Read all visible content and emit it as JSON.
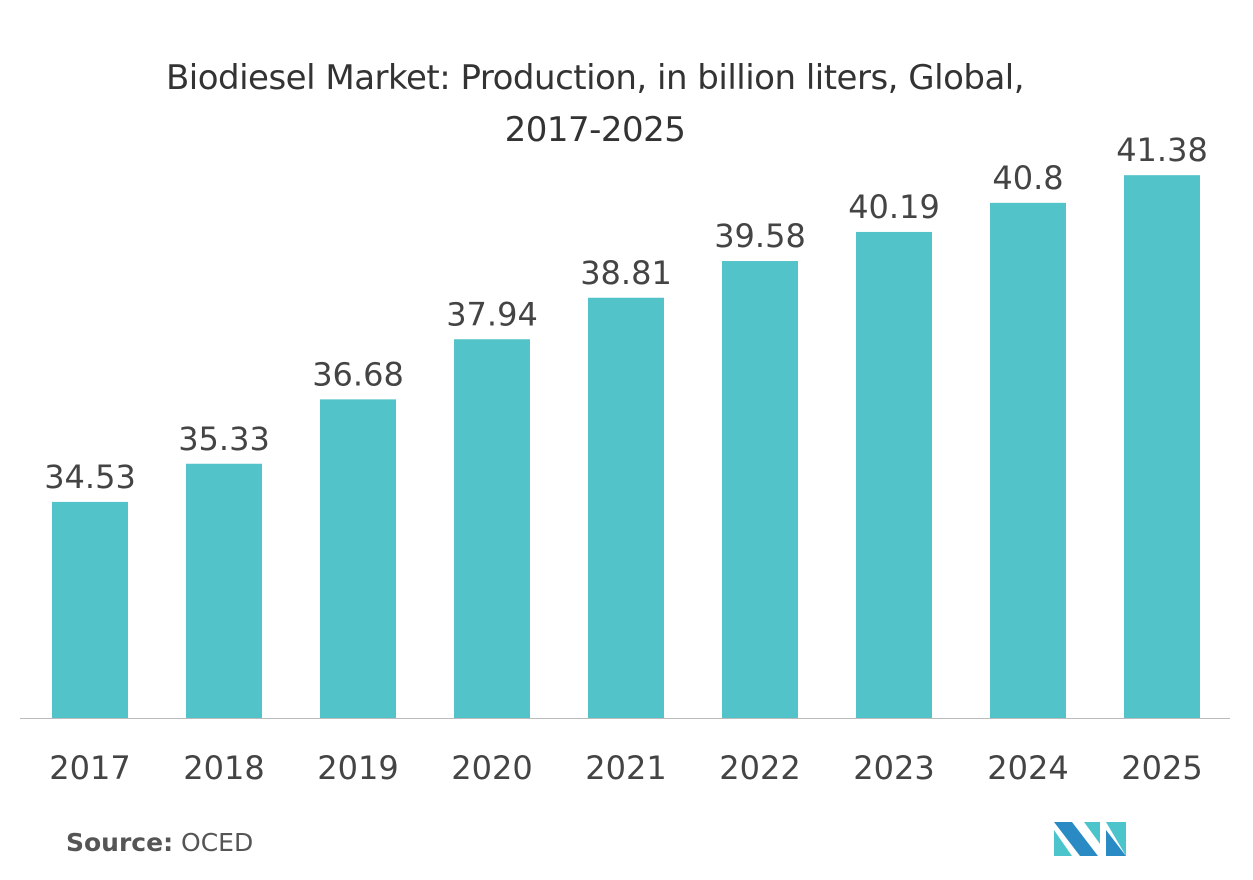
{
  "chart_data": {
    "type": "bar",
    "title_line1": "Biodiesel Market: Production, in billion liters, Global,",
    "title_line2": "2017-2025",
    "categories": [
      "2017",
      "2018",
      "2019",
      "2020",
      "2021",
      "2022",
      "2023",
      "2024",
      "2025"
    ],
    "values": [
      34.53,
      35.33,
      36.68,
      37.94,
      38.81,
      39.58,
      40.19,
      40.8,
      41.38
    ],
    "value_labels": [
      "34.53",
      "35.33",
      "36.68",
      "37.94",
      "38.81",
      "39.58",
      "40.19",
      "40.8",
      "41.38"
    ],
    "xlabel": "",
    "ylabel": "",
    "ylim": [
      30,
      42
    ],
    "grid": false,
    "legend": "none",
    "bar_color": "#52C3C8"
  },
  "source": {
    "label": "Source:",
    "value": "OCED"
  },
  "logo": {
    "colors": [
      "#2A8BC4",
      "#4CC4CC"
    ]
  }
}
